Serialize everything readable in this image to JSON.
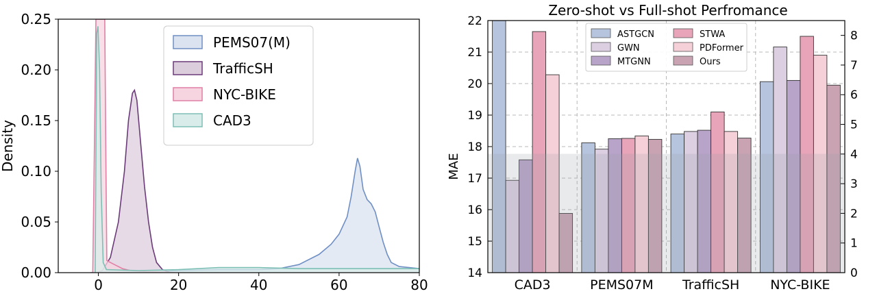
{
  "chart_data": [
    {
      "type": "area",
      "title": "",
      "xlabel": "",
      "ylabel": "Density",
      "xlim": [
        -10,
        80
      ],
      "ylim": [
        0,
        0.25
      ],
      "xticks": [
        "0",
        "20",
        "40",
        "60",
        "80"
      ],
      "yticks": [
        "0.00",
        "0.05",
        "0.10",
        "0.15",
        "0.20",
        "0.25"
      ],
      "legend_position": "top-right",
      "grid": false,
      "series": [
        {
          "name": "PEMS07(M)",
          "color": "#6f8fc4",
          "fill": "#dbe3f0",
          "points": [
            [
              -2,
              0
            ],
            [
              0,
              0
            ],
            [
              10,
              0.0005
            ],
            [
              20,
              0.002
            ],
            [
              30,
              0.003
            ],
            [
              40,
              0.003
            ],
            [
              45,
              0.004
            ],
            [
              50,
              0.008
            ],
            [
              55,
              0.018
            ],
            [
              58,
              0.028
            ],
            [
              60,
              0.038
            ],
            [
              62,
              0.055
            ],
            [
              63,
              0.075
            ],
            [
              64,
              0.1
            ],
            [
              64.6,
              0.113
            ],
            [
              65.2,
              0.105
            ],
            [
              66,
              0.082
            ],
            [
              67,
              0.072
            ],
            [
              68,
              0.068
            ],
            [
              69,
              0.06
            ],
            [
              70,
              0.045
            ],
            [
              71,
              0.03
            ],
            [
              72,
              0.018
            ],
            [
              73,
              0.01
            ],
            [
              75,
              0.006
            ],
            [
              80,
              0.004
            ]
          ]
        },
        {
          "name": "TrafficSH",
          "color": "#6b3a78",
          "fill": "#dccddd",
          "points": [
            [
              -0.5,
              0
            ],
            [
              1,
              0.002
            ],
            [
              3,
              0.015
            ],
            [
              5,
              0.05
            ],
            [
              6.5,
              0.1
            ],
            [
              7.5,
              0.15
            ],
            [
              8.5,
              0.177
            ],
            [
              9,
              0.18
            ],
            [
              9.6,
              0.17
            ],
            [
              10.5,
              0.13
            ],
            [
              11.5,
              0.085
            ],
            [
              12.5,
              0.05
            ],
            [
              13.5,
              0.025
            ],
            [
              14.5,
              0.01
            ],
            [
              16,
              0.003
            ],
            [
              18,
              0
            ]
          ]
        },
        {
          "name": "NYC-BIKE",
          "color": "#e07fa4",
          "fill": "#f6d4e0",
          "points": [
            [
              -1.4,
              0
            ],
            [
              -1,
              0.12
            ],
            [
              -0.6,
              0.25
            ],
            [
              1.6,
              0.25
            ],
            [
              1.9,
              0.1
            ],
            [
              2.1,
              0.012
            ],
            [
              3,
              0.01
            ],
            [
              4,
              0.008
            ],
            [
              6,
              0.004
            ],
            [
              8,
              0.002
            ],
            [
              12,
              0.001
            ],
            [
              20,
              0
            ]
          ]
        },
        {
          "name": "CAD3",
          "color": "#7dbfb5",
          "fill": "#d9ece9",
          "points": [
            [
              -0.8,
              0
            ],
            [
              -0.4,
              0.236
            ],
            [
              -0.1,
              0.243
            ],
            [
              0.3,
              0.2
            ],
            [
              0.7,
              0.08
            ],
            [
              1.2,
              0.01
            ],
            [
              2,
              0.003
            ],
            [
              10,
              0.002
            ],
            [
              20,
              0.003
            ],
            [
              30,
              0.005
            ],
            [
              40,
              0.005
            ],
            [
              50,
              0.004
            ],
            [
              60,
              0.004
            ],
            [
              70,
              0.004
            ],
            [
              80,
              0.004
            ]
          ]
        }
      ]
    },
    {
      "type": "bar",
      "title": "Zero-shot vs Full-shot Perfromance",
      "xlabel": "",
      "ylabel": "MAE",
      "ylim": [
        14,
        22
      ],
      "y2lim": [
        0,
        8.5
      ],
      "yticks": [
        "14",
        "15",
        "16",
        "17",
        "18",
        "19",
        "20",
        "21",
        "22"
      ],
      "y2ticks": [
        "0",
        "1",
        "2",
        "3",
        "4",
        "5",
        "6",
        "7",
        "8"
      ],
      "grid": true,
      "legend_position": "top-center",
      "categories": [
        "CAD3",
        "PEMS07M",
        "TrafficSH",
        "NYC-BIKE"
      ],
      "series": [
        {
          "name": "ASTGCN",
          "color": "#b7c4de",
          "values": [
            22.3,
            18.12,
            18.4,
            20.06
          ]
        },
        {
          "name": "GWN",
          "color": "#dccfe2",
          "values": [
            16.93,
            17.92,
            18.48,
            21.16
          ]
        },
        {
          "name": "MTGNN",
          "color": "#b8a3c9",
          "values": [
            17.58,
            18.25,
            18.52,
            20.1
          ]
        },
        {
          "name": "STWA",
          "color": "#e8a4b8",
          "values": [
            21.65,
            18.26,
            19.1,
            21.5
          ]
        },
        {
          "name": "PDFormer",
          "color": "#f6d0d8",
          "values": [
            20.28,
            18.34,
            18.48,
            20.9
          ]
        },
        {
          "name": "Ours",
          "color": "#c9a3b2",
          "values": [
            15.88,
            18.23,
            18.27,
            19.95
          ]
        }
      ],
      "overlay_band": {
        "from": 14,
        "to": 17.77,
        "color": "#9aa0a8"
      }
    }
  ]
}
